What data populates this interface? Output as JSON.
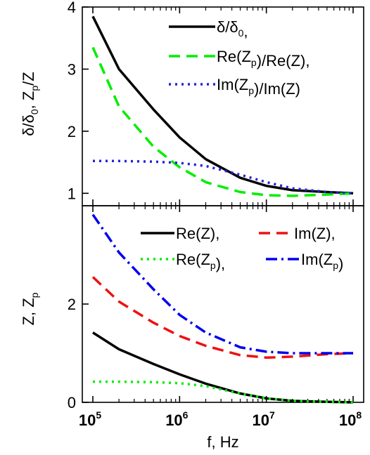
{
  "chart_data": [
    {
      "type": "line",
      "panel": "top",
      "xscale": "log",
      "xlim": [
        100000,
        100000000
      ],
      "ylim": [
        0.8,
        4.0
      ],
      "yticks": [
        1,
        2,
        3,
        4
      ],
      "ylabel": "δ/δ0, Zp/Z",
      "legend_position": "top-right",
      "series": [
        {
          "name": "δ/δ0,",
          "color": "#000000",
          "dash": "solid",
          "x": [
            100000,
            200000,
            500000,
            1000000,
            2000000,
            5000000,
            10000000,
            20000000,
            50000000,
            100000000
          ],
          "y": [
            3.85,
            3.0,
            2.35,
            1.9,
            1.55,
            1.25,
            1.12,
            1.05,
            1.02,
            1.0
          ]
        },
        {
          "name": "Re(Zp)/Re(Z),",
          "color": "#00ee00",
          "dash": "dashed",
          "x": [
            100000,
            200000,
            500000,
            1000000,
            2000000,
            5000000,
            10000000,
            20000000,
            50000000,
            100000000
          ],
          "y": [
            3.35,
            2.4,
            1.75,
            1.42,
            1.18,
            1.02,
            0.97,
            0.96,
            0.98,
            1.0
          ]
        },
        {
          "name": "Im(Zp)/Im(Z)",
          "color": "#2222dd",
          "dash": "dotted",
          "x": [
            100000,
            200000,
            500000,
            1000000,
            2000000,
            5000000,
            10000000,
            20000000,
            50000000,
            100000000
          ],
          "y": [
            1.52,
            1.52,
            1.51,
            1.49,
            1.44,
            1.3,
            1.18,
            1.08,
            1.02,
            1.0
          ]
        }
      ]
    },
    {
      "type": "line",
      "panel": "bottom",
      "xscale": "log",
      "xlim": [
        100000,
        100000000
      ],
      "ylim": [
        0,
        4.0
      ],
      "yticks": [
        0,
        2
      ],
      "xticks": [
        "10^5",
        "10^6",
        "10^7",
        "10^8"
      ],
      "xlabel": "f, Hz",
      "ylabel": "Z, Zp",
      "legend_position": "top-right",
      "series": [
        {
          "name": "Re(Z),",
          "color": "#000000",
          "dash": "solid",
          "x": [
            100000,
            200000,
            500000,
            1000000,
            2000000,
            5000000,
            10000000,
            20000000,
            50000000,
            100000000
          ],
          "y": [
            1.42,
            1.08,
            0.78,
            0.57,
            0.38,
            0.18,
            0.08,
            0.03,
            0.01,
            0.0
          ]
        },
        {
          "name": "Im(Z),",
          "color": "#ee1111",
          "dash": "dashed",
          "x": [
            100000,
            200000,
            500000,
            1000000,
            2000000,
            5000000,
            10000000,
            20000000,
            50000000,
            100000000
          ],
          "y": [
            2.55,
            2.05,
            1.62,
            1.35,
            1.15,
            0.96,
            0.91,
            0.93,
            0.98,
            1.0
          ]
        },
        {
          "name": "Re(Zp),",
          "color": "#00ee00",
          "dash": "dotted",
          "x": [
            100000,
            200000,
            500000,
            1000000,
            2000000,
            5000000,
            10000000,
            20000000,
            50000000,
            100000000
          ],
          "y": [
            0.42,
            0.42,
            0.41,
            0.39,
            0.33,
            0.18,
            0.08,
            0.03,
            0.01,
            0.0
          ]
        },
        {
          "name": "Im(Zp)",
          "color": "#0000ee",
          "dash": "dashdot",
          "x": [
            100000,
            200000,
            500000,
            1000000,
            2000000,
            5000000,
            10000000,
            20000000,
            50000000,
            100000000
          ],
          "y": [
            3.82,
            3.05,
            2.3,
            1.78,
            1.42,
            1.12,
            1.03,
            1.0,
            1.0,
            1.0
          ]
        }
      ]
    }
  ]
}
